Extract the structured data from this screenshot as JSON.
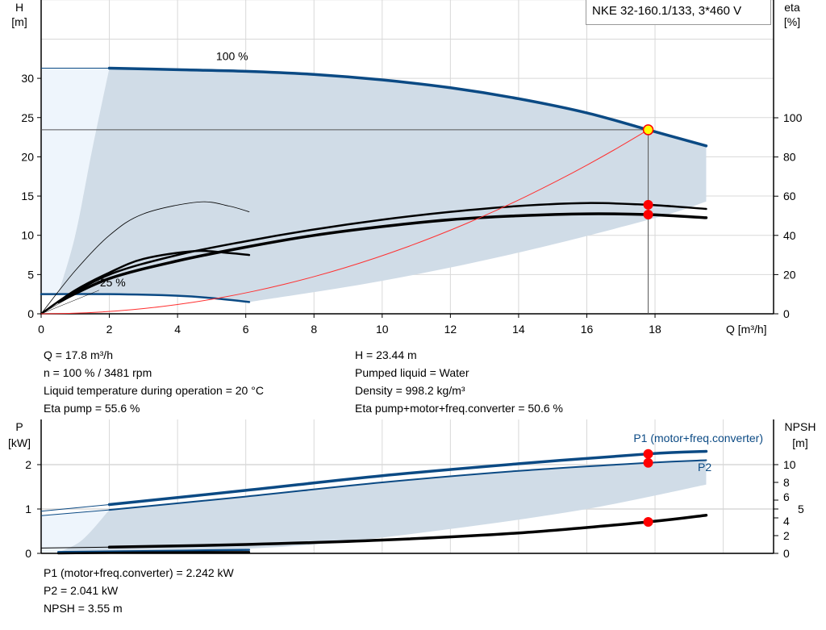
{
  "title_box": "NKE 32-160.1/133, 3*460 V",
  "colors": {
    "curve_blue": "#0b4a84",
    "area": "#d0dce7",
    "area_light": "#eef5fc",
    "system_curve": "#ff3030",
    "duty_point": "#ff0000",
    "duty_point_head": "#ffff00",
    "grid": "#d8d8d8"
  },
  "chart_data": [
    {
      "type": "line",
      "xlabel": "Q [m³/h]",
      "ylabel_left": [
        "H",
        "[m]"
      ],
      "ylabel_right": [
        "eta",
        "[%]"
      ],
      "xlim": [
        0,
        21.5
      ],
      "ylim_left": [
        0,
        40
      ],
      "ylim_right": [
        0,
        160
      ],
      "xticks": [
        0,
        2,
        4,
        6,
        8,
        10,
        12,
        14,
        16,
        18
      ],
      "yticks_left": [
        0,
        5,
        10,
        15,
        20,
        25,
        30
      ],
      "yticks_right": [
        0,
        20,
        40,
        60,
        80,
        100
      ],
      "grid": true,
      "annotations": [
        {
          "text": "100 %",
          "x": 5.6,
          "y": 32.3
        },
        {
          "text": "25 %",
          "x": 2.1,
          "y": 3.5
        }
      ],
      "series": {
        "head_max": [
          [
            0,
            31.3
          ],
          [
            2,
            31.3
          ],
          [
            4,
            31.1
          ],
          [
            6,
            30.9
          ],
          [
            8,
            30.5
          ],
          [
            10,
            29.8
          ],
          [
            12,
            28.8
          ],
          [
            14,
            27.4
          ],
          [
            16,
            25.6
          ],
          [
            17.8,
            23.44
          ],
          [
            19.5,
            21.4
          ]
        ],
        "head_min": [
          [
            0,
            2.5
          ],
          [
            2,
            2.5
          ],
          [
            4,
            2.3
          ],
          [
            5,
            2.0
          ],
          [
            6.1,
            1.5
          ]
        ],
        "area_left_boundary": [
          [
            0.5,
            2.5
          ],
          [
            1,
            10
          ],
          [
            1.5,
            21
          ],
          [
            2,
            31.3
          ]
        ],
        "area_lower_boundary": [
          [
            6.1,
            1.5
          ],
          [
            10,
            4.2
          ],
          [
            14,
            7.8
          ],
          [
            18,
            12.2
          ],
          [
            19.5,
            14.3
          ]
        ],
        "eta_pump": [
          [
            0.5,
            6
          ],
          [
            2,
            20
          ],
          [
            4,
            30
          ],
          [
            6,
            37
          ],
          [
            8,
            43
          ],
          [
            10,
            48
          ],
          [
            12,
            52
          ],
          [
            14,
            55
          ],
          [
            16,
            56.5
          ],
          [
            17.8,
            55.6
          ],
          [
            19.5,
            53.5
          ]
        ],
        "eta_total": [
          [
            0.5,
            6
          ],
          [
            2,
            18
          ],
          [
            4,
            27
          ],
          [
            6,
            34
          ],
          [
            8,
            40
          ],
          [
            10,
            44.5
          ],
          [
            12,
            48
          ],
          [
            14,
            50
          ],
          [
            16,
            51
          ],
          [
            17.8,
            50.6
          ],
          [
            19.5,
            49
          ]
        ],
        "eta_pump_min_speed": [
          [
            0,
            0
          ],
          [
            1,
            22
          ],
          [
            2,
            40
          ],
          [
            3,
            51
          ],
          [
            4.6,
            57
          ],
          [
            5.5,
            55
          ],
          [
            6.1,
            52
          ]
        ],
        "eta_total_min_speed": [
          [
            0,
            0
          ],
          [
            1,
            12
          ],
          [
            2,
            21
          ],
          [
            3,
            28
          ],
          [
            4.5,
            32
          ],
          [
            5.5,
            31
          ],
          [
            6.1,
            30
          ]
        ],
        "system_curve": {
          "q_duty": 17.8,
          "h_duty": 23.44
        },
        "duty_point": {
          "Q": 17.8,
          "H": 23.44,
          "eta_pump": 55.6,
          "eta_total": 50.6
        }
      }
    },
    {
      "type": "line",
      "ylabel_left": [
        "P",
        "[kW]"
      ],
      "ylabel_right": [
        "NPSH",
        "[m]"
      ],
      "xlim": [
        0,
        21.5
      ],
      "ylim_left": [
        0,
        2.6
      ],
      "ylim_right": [
        0,
        13
      ],
      "yticks_left": [
        0,
        1,
        2
      ],
      "yticks_right": [
        0,
        2,
        4,
        5,
        6,
        8,
        10
      ],
      "legend": [
        "P1 (motor+freq.converter)",
        "P2"
      ],
      "series": {
        "P1": [
          [
            0,
            0.95
          ],
          [
            2,
            1.1
          ],
          [
            6,
            1.42
          ],
          [
            10,
            1.75
          ],
          [
            14,
            2.02
          ],
          [
            17.8,
            2.242
          ],
          [
            19.5,
            2.3
          ]
        ],
        "P2": [
          [
            0,
            0.85
          ],
          [
            2,
            0.98
          ],
          [
            6,
            1.28
          ],
          [
            10,
            1.6
          ],
          [
            14,
            1.86
          ],
          [
            17.8,
            2.041
          ],
          [
            19.5,
            2.1
          ]
        ],
        "P_min_speed": [
          [
            0.5,
            0.03
          ],
          [
            3,
            0.05
          ],
          [
            6.1,
            0.08
          ]
        ],
        "area_lower_boundary": [
          [
            0.5,
            0.02
          ],
          [
            4,
            0.05
          ],
          [
            8,
            0.2
          ],
          [
            12,
            0.55
          ],
          [
            16,
            1.0
          ],
          [
            19.5,
            1.55
          ]
        ],
        "area_left_boundary": [
          [
            0.5,
            0.02
          ],
          [
            1.2,
            0.3
          ],
          [
            2,
            0.98
          ]
        ],
        "NPSH": [
          [
            0,
            0.6
          ],
          [
            2,
            0.7
          ],
          [
            6,
            1.0
          ],
          [
            10,
            1.5
          ],
          [
            14,
            2.3
          ],
          [
            17.8,
            3.55
          ],
          [
            19.5,
            4.3
          ]
        ],
        "NPSH_min_speed": [
          [
            0.5,
            0.0
          ],
          [
            3,
            0.1
          ],
          [
            6.1,
            0.15
          ]
        ],
        "duty_point": {
          "Q": 17.8,
          "P1": 2.242,
          "P2": 2.041,
          "NPSH": 3.55
        }
      }
    }
  ],
  "info_top_left": [
    "Q = 17.8 m³/h",
    "n = 100 % / 3481 rpm",
    "Liquid temperature during operation = 20 °C",
    "Eta pump = 55.6 %"
  ],
  "info_top_right": [
    "H = 23.44 m",
    "Pumped liquid = Water",
    "Density = 998.2 kg/m³",
    "Eta pump+motor+freq.converter = 50.6 %"
  ],
  "info_bottom": [
    "P1 (motor+freq.converter) = 2.242 kW",
    "P2 = 2.041 kW",
    "NPSH = 3.55 m"
  ]
}
